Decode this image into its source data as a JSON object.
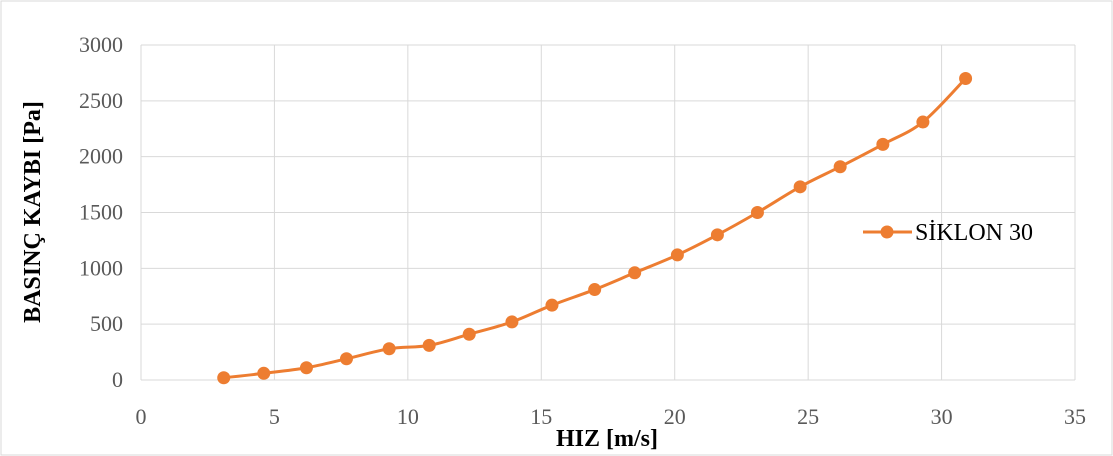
{
  "chart_data": {
    "type": "line",
    "xlabel": "HIZ [m/s]",
    "ylabel": "BASINÇ KAYBI [Pa]",
    "xlim": [
      0,
      35
    ],
    "ylim": [
      0,
      3000
    ],
    "x_ticks": [
      "0",
      "5",
      "10",
      "15",
      "20",
      "25",
      "30",
      "35"
    ],
    "y_ticks": [
      "0",
      "500",
      "1000",
      "1500",
      "2000",
      "2500",
      "3000"
    ],
    "grid": true,
    "legend_position": "right",
    "series": [
      {
        "name": "SİKLON 30",
        "color": "#ED7D31",
        "x": [
          3.1,
          4.6,
          6.2,
          7.7,
          9.3,
          10.8,
          12.3,
          13.9,
          15.4,
          17.0,
          18.5,
          20.1,
          21.6,
          23.1,
          24.7,
          26.2,
          27.8,
          29.3,
          30.9
        ],
        "y": [
          20,
          60,
          110,
          190,
          280,
          310,
          410,
          520,
          670,
          810,
          960,
          1120,
          1300,
          1500,
          1730,
          1910,
          2110,
          2310,
          2700
        ]
      }
    ]
  }
}
